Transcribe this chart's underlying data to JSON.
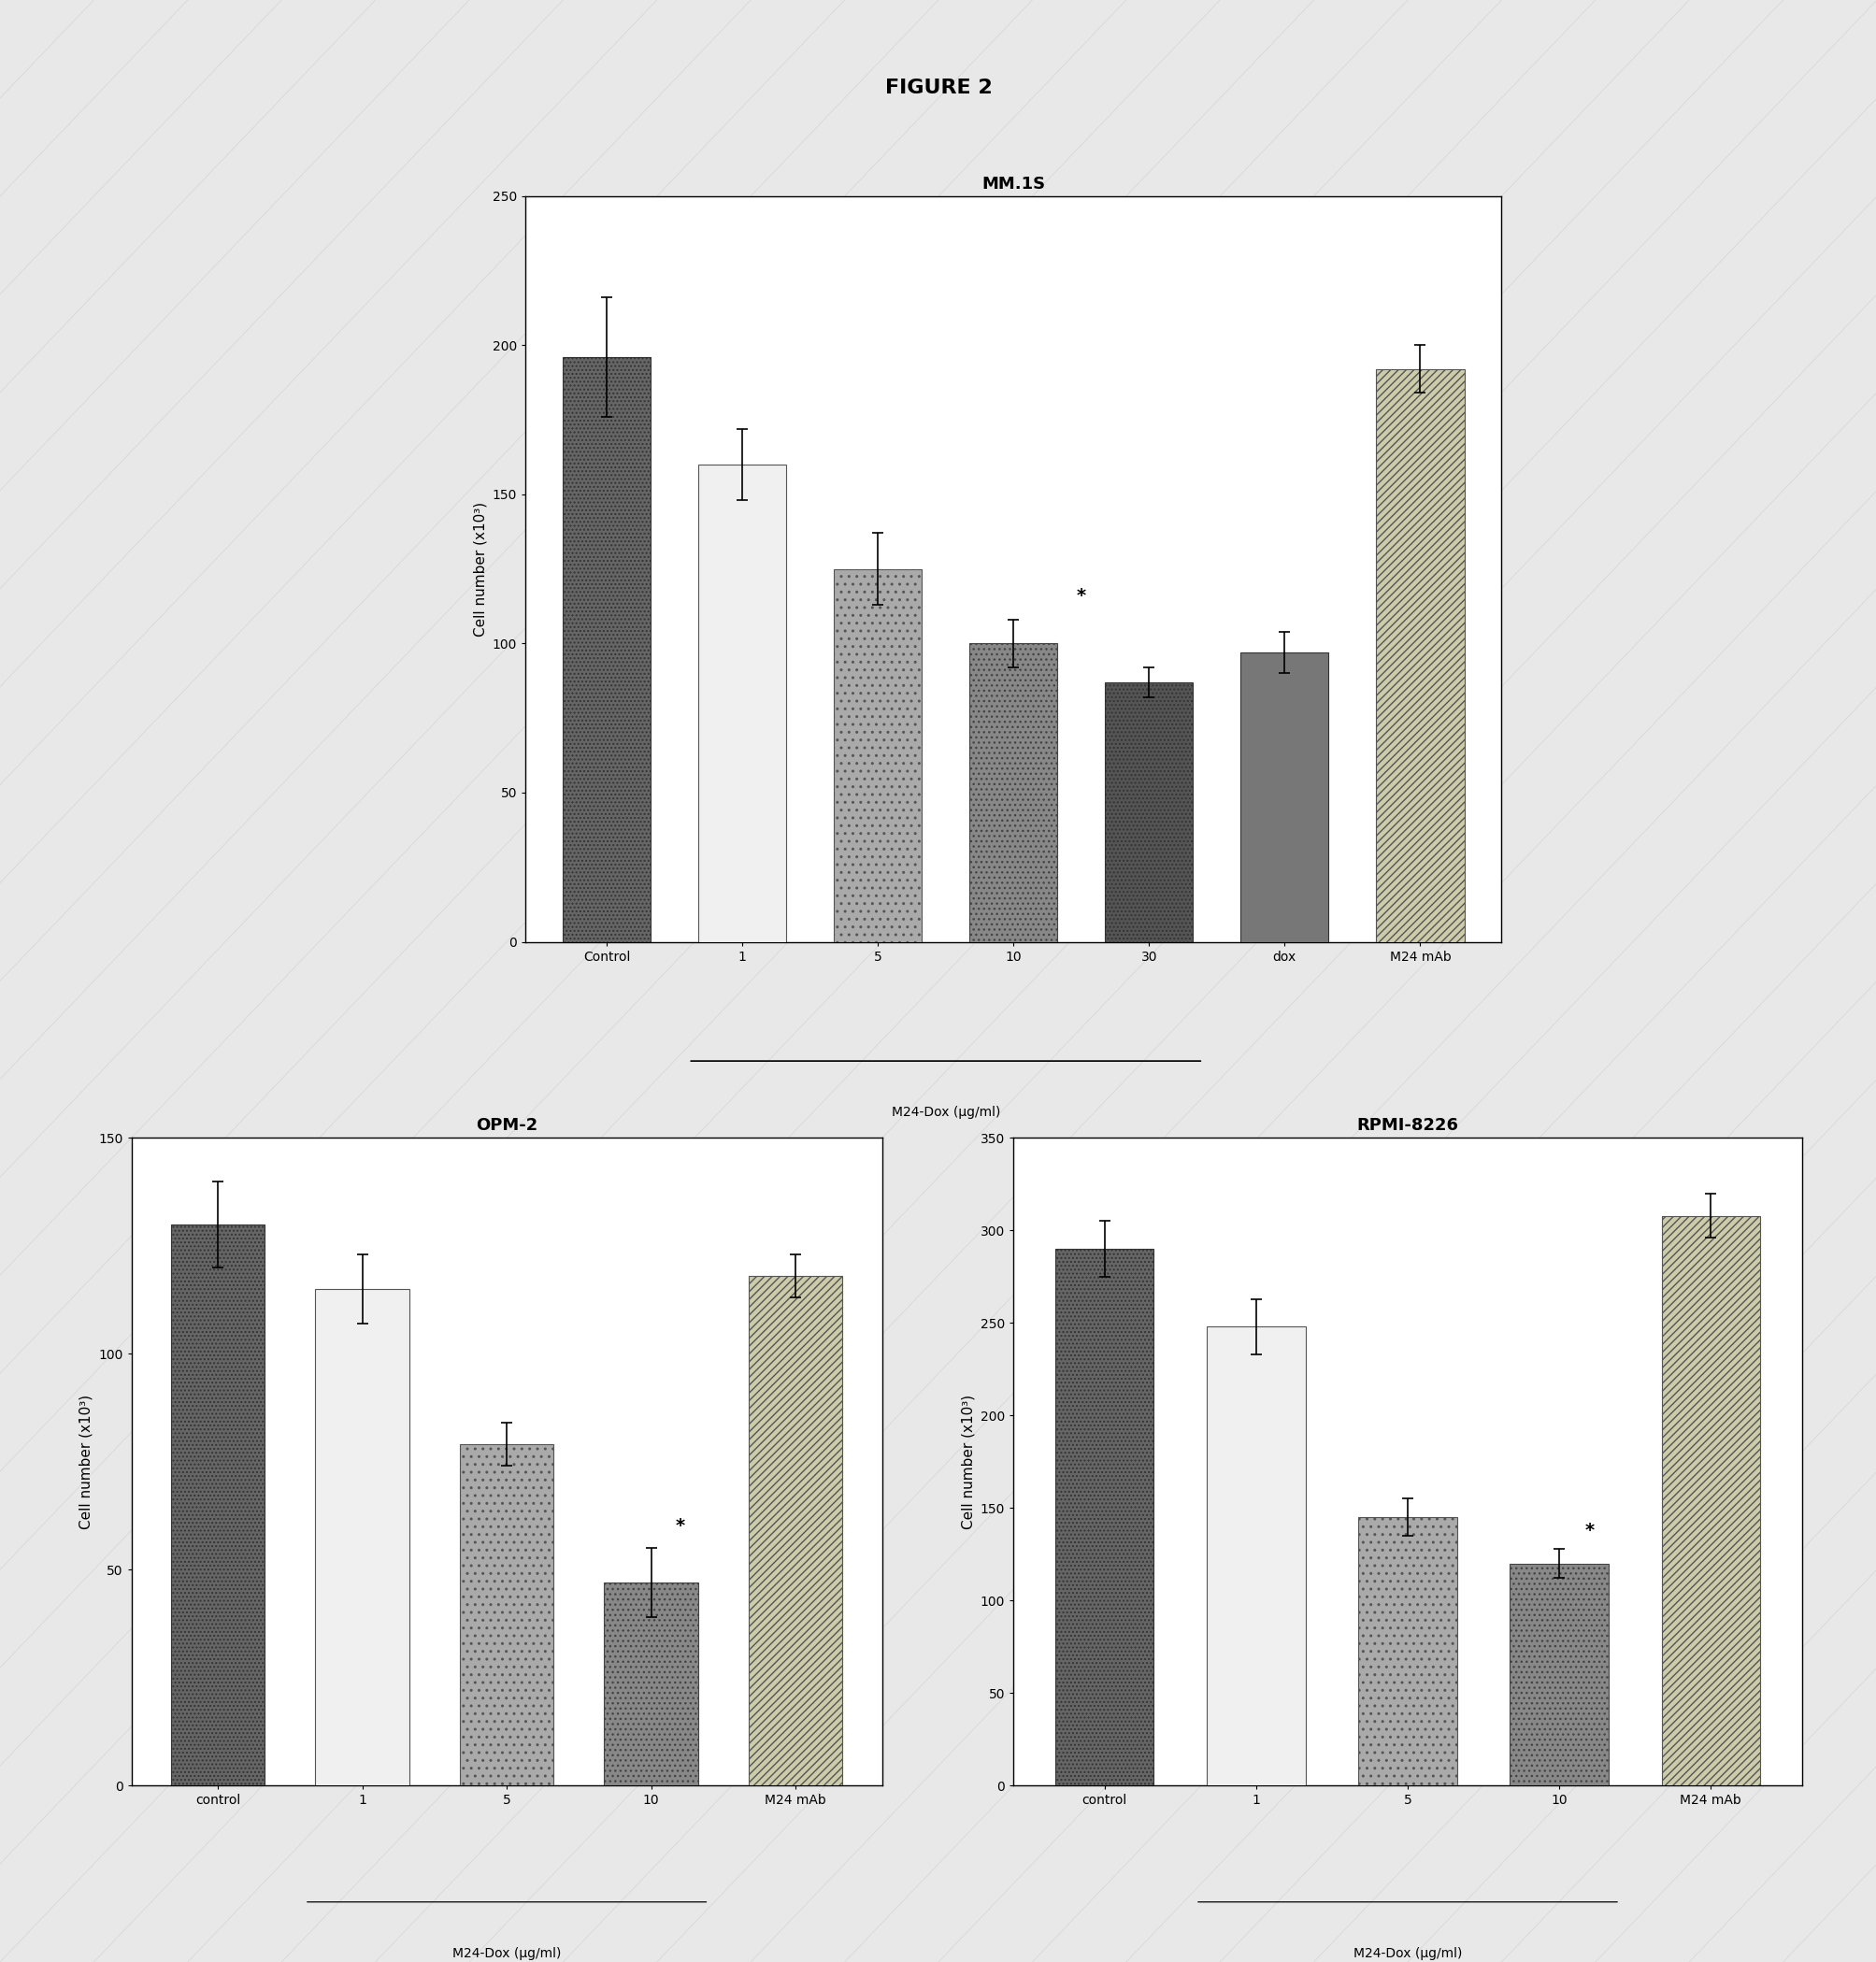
{
  "figure_title": "FIGURE 2",
  "background_color": "#f0f0f0",
  "panel_bg": "#ffffff",
  "mm1s": {
    "title": "MM.1S",
    "categories": [
      "Control",
      "1",
      "5",
      "10",
      "30",
      "dox",
      "M24 mAb"
    ],
    "values": [
      196,
      160,
      125,
      100,
      87,
      97,
      192
    ],
    "errors": [
      20,
      12,
      12,
      8,
      5,
      7,
      8
    ],
    "ylim": [
      0,
      250
    ],
    "yticks": [
      0,
      50,
      100,
      150,
      200,
      250
    ],
    "ylabel": "Cell number (x10³)",
    "xlabel": "M24-Dox (µg/ml)",
    "bracket_cats": [
      "1",
      "5",
      "10",
      "30"
    ],
    "star_cat": "10",
    "bar_colors": [
      "#4a4a4a",
      "#e8e8e8",
      "#b0b0b0",
      "#808080",
      "#585858",
      "#686868",
      "#d8d8c8"
    ],
    "bar_patterns": [
      "dense_dots",
      "none",
      "sparse_dots",
      "medium_dots",
      "dark_dots",
      "dark_solid",
      "diagonal_lines"
    ]
  },
  "opm2": {
    "title": "OPM-2",
    "categories": [
      "control",
      "1",
      "5",
      "10",
      "M24 mAb"
    ],
    "values": [
      130,
      115,
      79,
      47,
      118
    ],
    "errors": [
      10,
      8,
      5,
      8,
      5
    ],
    "ylim": [
      0,
      150
    ],
    "yticks": [
      0,
      50,
      100,
      150
    ],
    "ylabel": "Cell number (x10³)",
    "xlabel": "M24-Dox (µg/ml)",
    "bracket_cats": [
      "1",
      "5",
      "10"
    ],
    "star_cat": "10",
    "bar_colors": [
      "#4a4a4a",
      "#e8e8e8",
      "#b0b0b0",
      "#808080",
      "#d0d0bc"
    ],
    "bar_patterns": [
      "dense_dots",
      "none",
      "sparse_dots",
      "medium_dots",
      "diagonal_lines"
    ]
  },
  "rpmi8226": {
    "title": "RPMI-8226",
    "categories": [
      "control",
      "1",
      "5",
      "10",
      "M24 mAb"
    ],
    "values": [
      290,
      248,
      145,
      120,
      308
    ],
    "errors": [
      15,
      15,
      10,
      8,
      12
    ],
    "ylim": [
      0,
      350
    ],
    "yticks": [
      0,
      50,
      100,
      150,
      200,
      250,
      300,
      350
    ],
    "ylabel": "Cell number (x10³)",
    "xlabel": "M24-Dox (µg/ml)",
    "bracket_cats": [
      "1",
      "5",
      "10"
    ],
    "star_cat": "10",
    "bar_colors": [
      "#4a4a4a",
      "#e8e8e8",
      "#b0b0b0",
      "#808080",
      "#d0d0bc"
    ],
    "bar_patterns": [
      "dense_dots",
      "none",
      "sparse_dots",
      "medium_dots",
      "diagonal_lines"
    ]
  }
}
